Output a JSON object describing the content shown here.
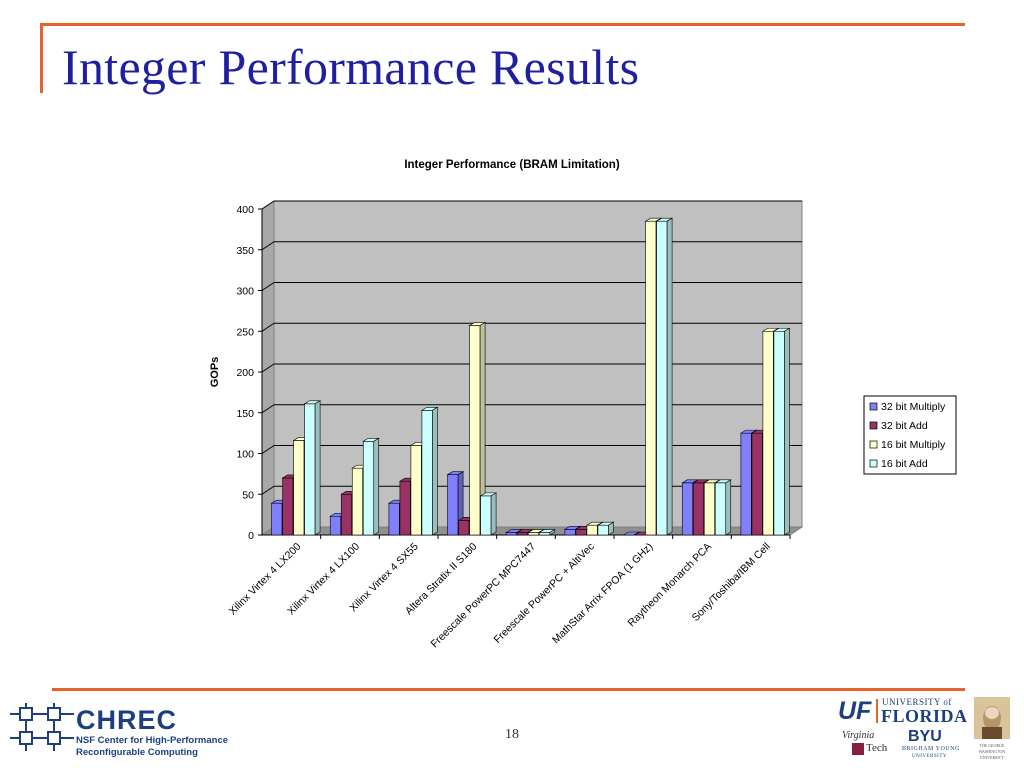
{
  "slide": {
    "title": "Integer Performance Results",
    "page_number": "18"
  },
  "footer": {
    "chrec_name": "CHREC",
    "chrec_line1": "NSF Center for High-Performance",
    "chrec_line2": "Reconfigurable Computing",
    "uf_mark": "UF",
    "uf_univ": "UNIVERSITY of",
    "uf_florida": "FLORIDA",
    "vt_line1": "Virginia",
    "vt_line2": "Tech",
    "byu": "BYU",
    "byu_sub": "BRIGHAM YOUNG",
    "byu_sub2": "UNIVERSITY",
    "gw_text": "THE GEORGE WASHINGTON UNIVERSITY"
  },
  "chart_data": {
    "type": "bar",
    "title": "Integer Performance (BRAM Limitation)",
    "xlabel": "",
    "ylabel": "GOPs",
    "ylim": [
      0,
      400
    ],
    "yticks": [
      0,
      50,
      100,
      150,
      200,
      250,
      300,
      350,
      400
    ],
    "grid": true,
    "legend_position": "right",
    "categories": [
      "Xilinx Virtex 4 LX200",
      "Xilinx Virtex 4 LX100",
      "Xilinx Virtex 4 SX55",
      "Altera Stratix II S180",
      "Freescale PowerPC MPC7447",
      "Freescale PowerPC + AltiVec",
      "MathStar Arrix FPOA (1 GHz)",
      "Raytheon Monarch PCA",
      "Sony/Toshiba/IBM Cell"
    ],
    "series": [
      {
        "name": "32 bit Multiply",
        "color": "#8080ff",
        "values": [
          39,
          23,
          39,
          74,
          3,
          7,
          0,
          64,
          125
        ]
      },
      {
        "name": "32 bit Add",
        "color": "#993366",
        "values": [
          70,
          50,
          66,
          18,
          3,
          7,
          0,
          64,
          125
        ]
      },
      {
        "name": "16 bit Multiply",
        "color": "#ffffcc",
        "values": [
          116,
          82,
          110,
          257,
          3,
          12,
          385,
          64,
          250
        ]
      },
      {
        "name": "16 bit Add",
        "color": "#ccffff",
        "values": [
          161,
          115,
          153,
          48,
          3,
          12,
          385,
          64,
          250
        ]
      }
    ],
    "plot_bg": "#c0c0c0"
  }
}
